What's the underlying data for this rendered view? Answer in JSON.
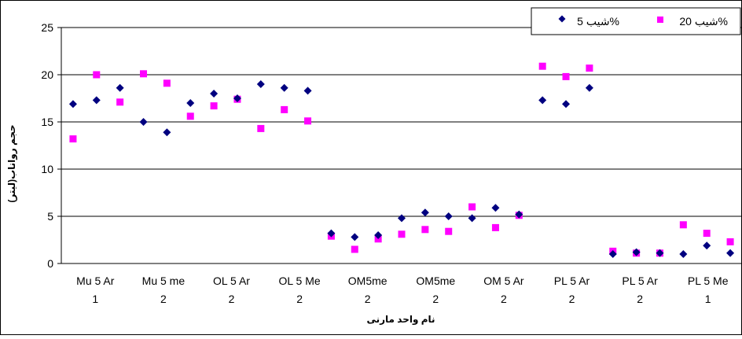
{
  "chart_data": {
    "type": "scatter",
    "title": "",
    "xlabel": "نام واحد مارنی",
    "ylabel": "حجم رواناب(لیتر)",
    "ylim": [
      0,
      25
    ],
    "yticks": [
      0,
      5,
      10,
      15,
      20,
      25
    ],
    "grid": true,
    "legend_position": "top-right",
    "categories": [
      [
        "Mu 5 Ar",
        "1"
      ],
      [
        "Mu 5 me",
        "2"
      ],
      [
        "OL 5 Ar",
        "2"
      ],
      [
        "OL 5 Me",
        "2"
      ],
      [
        "OM5me",
        "2"
      ],
      [
        "OM5me",
        "2"
      ],
      [
        "OM 5 Ar",
        "2"
      ],
      [
        "PL 5 Ar",
        "2"
      ],
      [
        "PL 5 Ar",
        "2"
      ],
      [
        "PL 5 Me",
        "1"
      ]
    ],
    "series": [
      {
        "name": "شیب 5%",
        "color": "#000080",
        "marker": "diamond",
        "values": [
          16.9,
          17.3,
          18.6,
          15.0,
          13.9,
          17.0,
          18.0,
          17.5,
          19.0,
          18.6,
          18.3,
          3.2,
          2.8,
          3.0,
          4.8,
          5.4,
          5.0,
          4.8,
          5.9,
          5.2,
          17.3,
          16.9,
          18.6,
          1.0,
          1.2,
          1.1,
          1.0,
          1.9,
          1.1
        ]
      },
      {
        "name": "شیب 20%",
        "color": "#ff00ff",
        "marker": "square",
        "values": [
          13.2,
          20.0,
          17.1,
          20.1,
          19.1,
          15.6,
          16.7,
          17.4,
          14.3,
          16.3,
          15.1,
          2.9,
          1.5,
          2.6,
          3.1,
          3.6,
          3.4,
          6.0,
          3.8,
          5.1,
          20.9,
          19.8,
          20.7,
          1.3,
          1.1,
          1.1,
          4.1,
          3.2,
          2.3
        ]
      }
    ]
  }
}
